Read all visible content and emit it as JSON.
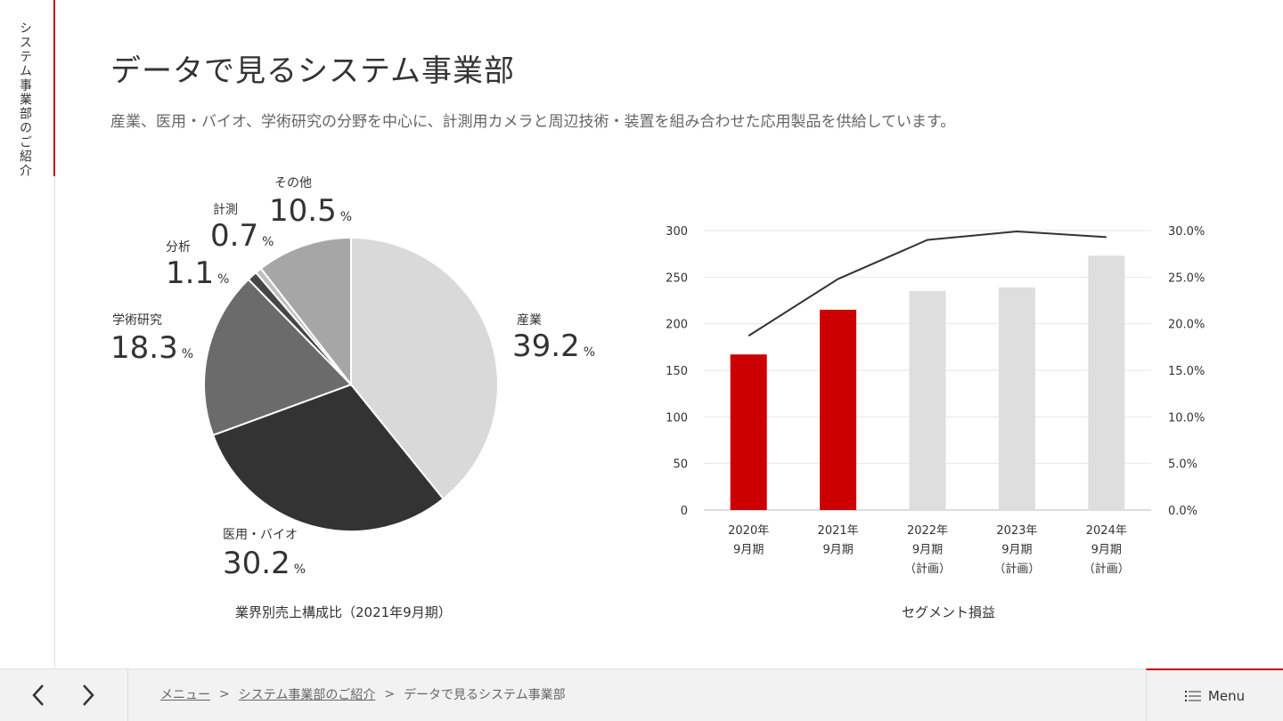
{
  "side": {
    "title": "システム事業部のご紹介"
  },
  "page": {
    "title": "データで見るシステム事業部",
    "description": "産業、医用・バイオ、学術研究の分野を中心に、計測用カメラと周辺技術・装置を組み合わせた応用製品を供給しています。"
  },
  "colors": {
    "accent": "#c8000a"
  },
  "chart_data": [
    {
      "type": "pie",
      "title": "業界別売上構成比（2021年9月期）",
      "unit": "%",
      "slices": [
        {
          "name": "産業",
          "value": 39.2,
          "color": "#d9d9d9"
        },
        {
          "name": "医用・バイオ",
          "value": 30.2,
          "color": "#333333"
        },
        {
          "name": "学術研究",
          "value": 18.3,
          "color": "#6b6b6b"
        },
        {
          "name": "分析",
          "value": 1.1,
          "color": "#474747"
        },
        {
          "name": "計測",
          "value": 0.7,
          "color": "#bfbfbf"
        },
        {
          "name": "その他",
          "value": 10.5,
          "color": "#a6a6a6"
        }
      ]
    },
    {
      "type": "bar",
      "title": "セグメント損益",
      "categories": [
        [
          "2020年",
          "9月期",
          ""
        ],
        [
          "2021年",
          "9月期",
          ""
        ],
        [
          "2022年",
          "9月期",
          "（計画）"
        ],
        [
          "2023年",
          "9月期",
          "（計画）"
        ],
        [
          "2024年",
          "9月期",
          "（計画）"
        ]
      ],
      "bar_values": [
        167,
        215,
        235,
        239,
        273
      ],
      "bar_colors": [
        "#cc0000",
        "#cc0000",
        "#dedede",
        "#dedede",
        "#dedede"
      ],
      "line_values": [
        18.7,
        24.8,
        29.0,
        29.9,
        29.3
      ],
      "ylim_left": [
        0,
        300
      ],
      "yticks_left": [
        "0",
        "50",
        "100",
        "150",
        "200",
        "250",
        "300"
      ],
      "ylim_right": [
        0,
        30
      ],
      "yticks_right": [
        "0.0%",
        "5.0%",
        "10.0%",
        "15.0%",
        "20.0%",
        "25.0%",
        "30.0%"
      ],
      "grid": true
    }
  ],
  "footer": {
    "prev_icon": "chevron-left-icon",
    "next_icon": "chevron-right-icon",
    "breadcrumb": [
      "メニュー",
      "システム事業部のご紹介",
      "データで見るシステム事業部"
    ],
    "separator": ">",
    "menu_label": "Menu",
    "menu_icon": "list-icon"
  }
}
